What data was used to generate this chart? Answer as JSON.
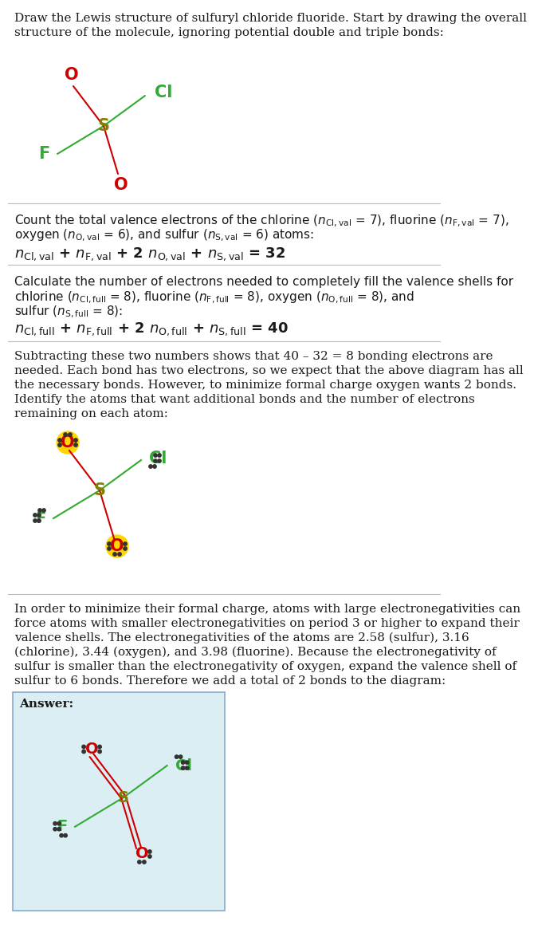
{
  "bg_color": "#ffffff",
  "answer_bg": "#daeef3",
  "text_color": "#1a1a1a",
  "divider_color": "#bbbbbb",
  "S_color": "#808000",
  "O_color": "#cc0000",
  "Cl_color": "#33aa33",
  "F_color": "#33aa33",
  "highlight_color": "#ffd700",
  "dot_color": "#333333",
  "answer_label": "Answer:",
  "title_line1": "Draw the Lewis structure of sulfuryl chloride fluoride. Start by drawing the overall",
  "title_line2": "structure of the molecule, ignoring potential double and triple bonds:",
  "s4_line1": "Subtracting these two numbers shows that 40 – 32 = 8 bonding electrons are",
  "s4_line2": "needed. Each bond has two electrons, so we expect that the above diagram has all",
  "s4_line3": "the necessary bonds. However, to minimize formal charge oxygen wants 2 bonds.",
  "s4_line4": "Identify the atoms that want additional bonds and the number of electrons",
  "s4_line5": "remaining on each atom:",
  "s5_line1": "In order to minimize their formal charge, atoms with large electronegativities can",
  "s5_line2": "force atoms with smaller electronegativities on period 3 or higher to expand their",
  "s5_line3": "valence shells. The electronegativities of the atoms are 2.58 (sulfur), 3.16",
  "s5_line4": "(chlorine), 3.44 (oxygen), and 3.98 (fluorine). Because the electronegativity of",
  "s5_line5": "sulfur is smaller than the electronegativity of oxygen, expand the valence shell of",
  "s5_line6": "sulfur to 6 bonds. Therefore we add a total of 2 bonds to the diagram:"
}
